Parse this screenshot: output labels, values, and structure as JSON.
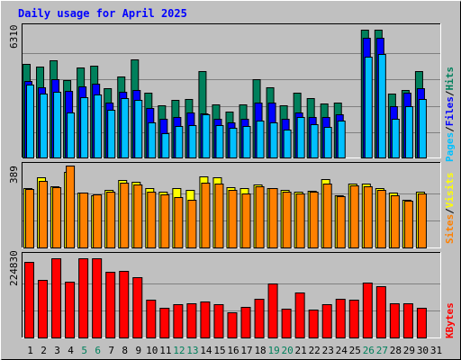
{
  "colors": {
    "background": "#c0c0c0",
    "plot_background": "#c0c0c0",
    "title": "#0000ff",
    "weekend_day_label": "#00805c",
    "weekday_day_label": "#000000",
    "hits": "#00805c",
    "files": "#0000ff",
    "pages": "#00c0ff",
    "visits": "#ffff00",
    "sites": "#ff8000",
    "kbytes": "#ff0000"
  },
  "chart_data": [
    {
      "type": "bar",
      "panel": "requests",
      "title": "Daily usage for April 2025",
      "ymax_label": "6310",
      "ylim": [
        0,
        6310
      ],
      "grid": true,
      "legend": "right, vertical",
      "legend_items": [
        "Pages",
        "Files",
        "Hits"
      ],
      "legend_separator": "/",
      "categories": [
        "1",
        "2",
        "3",
        "4",
        "5",
        "6",
        "7",
        "8",
        "9",
        "10",
        "11",
        "12",
        "13",
        "14",
        "15",
        "16",
        "17",
        "18",
        "19",
        "20",
        "21",
        "22",
        "23",
        "24",
        "25",
        "26",
        "27",
        "28",
        "29",
        "30",
        "31"
      ],
      "series": [
        {
          "name": "Hits",
          "values": [
            4550,
            4400,
            4700,
            3750,
            4350,
            4430,
            3350,
            3950,
            4750,
            3150,
            2550,
            2800,
            2850,
            4200,
            2600,
            2250,
            2600,
            3800,
            3400,
            2550,
            3150,
            2900,
            2650,
            2700,
            0,
            6200,
            6200,
            3100,
            3300,
            4200,
            0
          ]
        },
        {
          "name": "Files",
          "values": [
            3700,
            3400,
            3800,
            3250,
            3450,
            3600,
            2700,
            3200,
            3300,
            2400,
            1900,
            2000,
            2200,
            2150,
            1900,
            1750,
            1900,
            2700,
            2700,
            1900,
            2200,
            2000,
            2000,
            2100,
            0,
            5800,
            5800,
            2500,
            3150,
            3350,
            0
          ]
        },
        {
          "name": "Pages",
          "values": [
            3550,
            3100,
            3200,
            2200,
            2950,
            3050,
            2350,
            2900,
            2800,
            1750,
            1200,
            1550,
            1600,
            2100,
            1600,
            1450,
            1550,
            1800,
            1750,
            1400,
            2000,
            1650,
            1500,
            1800,
            0,
            4900,
            5000,
            1900,
            2500,
            2850,
            0
          ]
        }
      ]
    },
    {
      "type": "bar",
      "panel": "visitors",
      "ymax_label": "389",
      "ylim": [
        0,
        389
      ],
      "grid": true,
      "legend": "right, vertical",
      "legend_items": [
        "Sites",
        "Visits"
      ],
      "legend_separator": "/",
      "categories": [
        "1",
        "2",
        "3",
        "4",
        "5",
        "6",
        "7",
        "8",
        "9",
        "10",
        "11",
        "12",
        "13",
        "14",
        "15",
        "16",
        "17",
        "18",
        "19",
        "20",
        "21",
        "22",
        "23",
        "24",
        "25",
        "26",
        "27",
        "28",
        "29",
        "30",
        "31"
      ],
      "series": [
        {
          "name": "Visits",
          "values": [
            283,
            335,
            291,
            359,
            262,
            248,
            274,
            322,
            314,
            283,
            265,
            285,
            275,
            340,
            335,
            288,
            282,
            302,
            283,
            276,
            267,
            270,
            324,
            248,
            303,
            306,
            282,
            264,
            230,
            268,
            0
          ]
        },
        {
          "name": "Sites",
          "values": [
            277,
            318,
            286,
            389,
            262,
            254,
            268,
            310,
            300,
            268,
            252,
            239,
            230,
            310,
            305,
            275,
            258,
            290,
            282,
            265,
            257,
            266,
            305,
            245,
            298,
            292,
            274,
            248,
            223,
            257,
            0
          ]
        }
      ]
    },
    {
      "type": "bar",
      "panel": "kbytes",
      "ymax_label": "224830",
      "ylim": [
        0,
        224830
      ],
      "grid": true,
      "legend": "right, vertical",
      "legend_items": [
        "KBytes"
      ],
      "categories": [
        "1",
        "2",
        "3",
        "4",
        "5",
        "6",
        "7",
        "8",
        "9",
        "10",
        "11",
        "12",
        "13",
        "14",
        "15",
        "16",
        "17",
        "18",
        "19",
        "20",
        "21",
        "22",
        "23",
        "24",
        "25",
        "26",
        "27",
        "28",
        "29",
        "30",
        "31"
      ],
      "series": [
        {
          "name": "KBytes",
          "values": [
            208000,
            159000,
            218000,
            153000,
            218000,
            218000,
            180000,
            183000,
            165000,
            106000,
            82000,
            94000,
            95000,
            100000,
            92000,
            70000,
            85000,
            108000,
            150000,
            80000,
            125000,
            77000,
            93000,
            107000,
            106000,
            152000,
            141000,
            95000,
            95000,
            84000,
            0
          ]
        }
      ]
    }
  ],
  "weekend_days": [
    5,
    6,
    12,
    13,
    19,
    20,
    26,
    27
  ]
}
